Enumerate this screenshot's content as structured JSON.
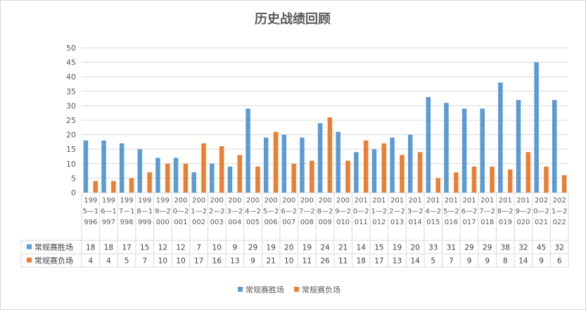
{
  "chart_data": {
    "type": "bar",
    "title": "历史战绩回顾",
    "ylim": [
      0,
      50
    ],
    "yticks": [
      0,
      5,
      10,
      15,
      20,
      25,
      30,
      35,
      40,
      45,
      50
    ],
    "grid": true,
    "legend_position": "bottom",
    "categories": [
      "1995—1996",
      "1996—1997",
      "1997—1998",
      "1998—1999",
      "1999—2000",
      "2000—2001",
      "2001—2002",
      "2002—2003",
      "2003—2004",
      "2004—2005",
      "2005—2006",
      "2006—2007",
      "2007—2008",
      "2008—2009",
      "2009—2010",
      "2010—2011",
      "2011—2012",
      "2012—2013",
      "2013—2014",
      "2014—2015",
      "2015—2016",
      "2016—2017",
      "2017—2018",
      "2018—2019",
      "2019—2020",
      "2020—2021",
      "2021—2022"
    ],
    "series": [
      {
        "name": "常规赛胜场",
        "color": "#5b9bd5",
        "values": [
          18,
          18,
          17,
          15,
          12,
          12,
          7,
          10,
          9,
          29,
          19,
          20,
          19,
          24,
          21,
          14,
          15,
          19,
          20,
          33,
          31,
          29,
          29,
          38,
          32,
          45,
          32
        ]
      },
      {
        "name": "常规赛负场",
        "color": "#ed7d31",
        "values": [
          4,
          4,
          5,
          7,
          10,
          10,
          17,
          16,
          13,
          9,
          21,
          10,
          11,
          26,
          11,
          18,
          17,
          13,
          14,
          5,
          7,
          9,
          9,
          8,
          14,
          9,
          6
        ]
      }
    ]
  }
}
